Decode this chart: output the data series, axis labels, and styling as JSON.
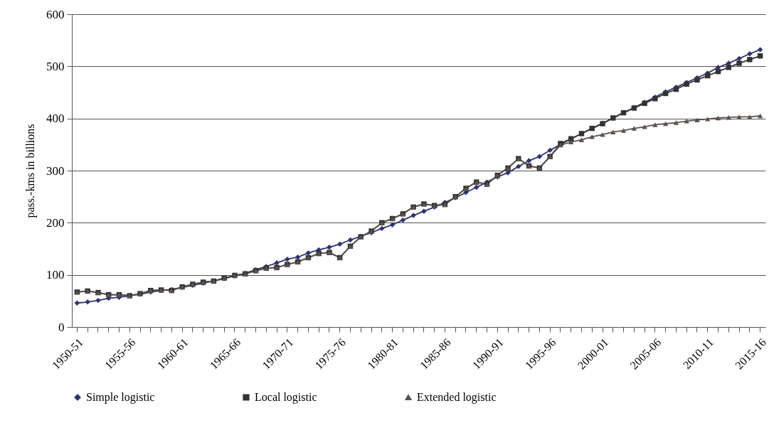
{
  "chart_data": {
    "type": "line",
    "ylabel": "pass.-kms in billions",
    "categories": [
      "1950-51",
      null,
      null,
      null,
      null,
      "1955-56",
      null,
      null,
      null,
      null,
      "1960-61",
      null,
      null,
      null,
      null,
      "1965-66",
      null,
      null,
      null,
      null,
      "1970-71",
      null,
      null,
      null,
      null,
      "1975-76",
      null,
      null,
      null,
      null,
      "1980-81",
      null,
      null,
      null,
      null,
      "1985-86",
      null,
      null,
      null,
      null,
      "1990-91",
      null,
      null,
      null,
      null,
      "1995-96",
      null,
      null,
      null,
      null,
      "2000-01",
      null,
      null,
      null,
      null,
      "2005-06",
      null,
      null,
      null,
      null,
      "2010-11",
      null,
      null,
      null,
      null,
      "2015-16"
    ],
    "series": [
      {
        "name": "Simple logistic",
        "color": "#2e3470",
        "marker": "diamond",
        "values": [
          46,
          48,
          51,
          55,
          57,
          60,
          63,
          67,
          70,
          72,
          76,
          80,
          84,
          88,
          93,
          98,
          103,
          110,
          116,
          123,
          130,
          134,
          142,
          148,
          153,
          159,
          167,
          174,
          181,
          189,
          196,
          205,
          214,
          222,
          230,
          239,
          248,
          258,
          268,
          278,
          288,
          296,
          308,
          319,
          327,
          339,
          350,
          361,
          371,
          381,
          391,
          401,
          411,
          421,
          431,
          441,
          451,
          460,
          469,
          478,
          487,
          498,
          506,
          515,
          524,
          532
        ]
      },
      {
        "name": "Local logistic",
        "color": "#333333",
        "marker": "square",
        "values": [
          67,
          69,
          66,
          62,
          62,
          60,
          64,
          70,
          71,
          70,
          77,
          82,
          86,
          88,
          94,
          99,
          102,
          108,
          113,
          114,
          120,
          125,
          133,
          141,
          143,
          133,
          155,
          173,
          184,
          200,
          208,
          217,
          230,
          236,
          233,
          235,
          250,
          266,
          278,
          274,
          291,
          305,
          323,
          309,
          305,
          327,
          352,
          361,
          371,
          381,
          390,
          401,
          411,
          420,
          429,
          438,
          448,
          456,
          466,
          474,
          482,
          490,
          498,
          506,
          513,
          520
        ]
      },
      {
        "name": "Extended logistic",
        "color": "#5a524e",
        "marker": "triangle",
        "values": [
          67,
          69,
          66,
          62,
          62,
          60,
          64,
          70,
          71,
          70,
          77,
          82,
          86,
          88,
          94,
          99,
          102,
          108,
          113,
          114,
          120,
          125,
          133,
          141,
          143,
          133,
          155,
          173,
          184,
          200,
          208,
          217,
          230,
          236,
          233,
          235,
          250,
          266,
          278,
          274,
          291,
          305,
          323,
          309,
          305,
          327,
          349,
          355,
          359,
          365,
          369,
          374,
          377,
          381,
          384,
          388,
          390,
          392,
          395,
          397,
          399,
          401,
          402,
          403,
          403,
          405
        ]
      }
    ],
    "ylim": [
      0,
      600
    ],
    "yticks": [
      0,
      100,
      200,
      300,
      400,
      500,
      600
    ],
    "grid": "y",
    "legend": "bottom",
    "line_style": "solid"
  }
}
